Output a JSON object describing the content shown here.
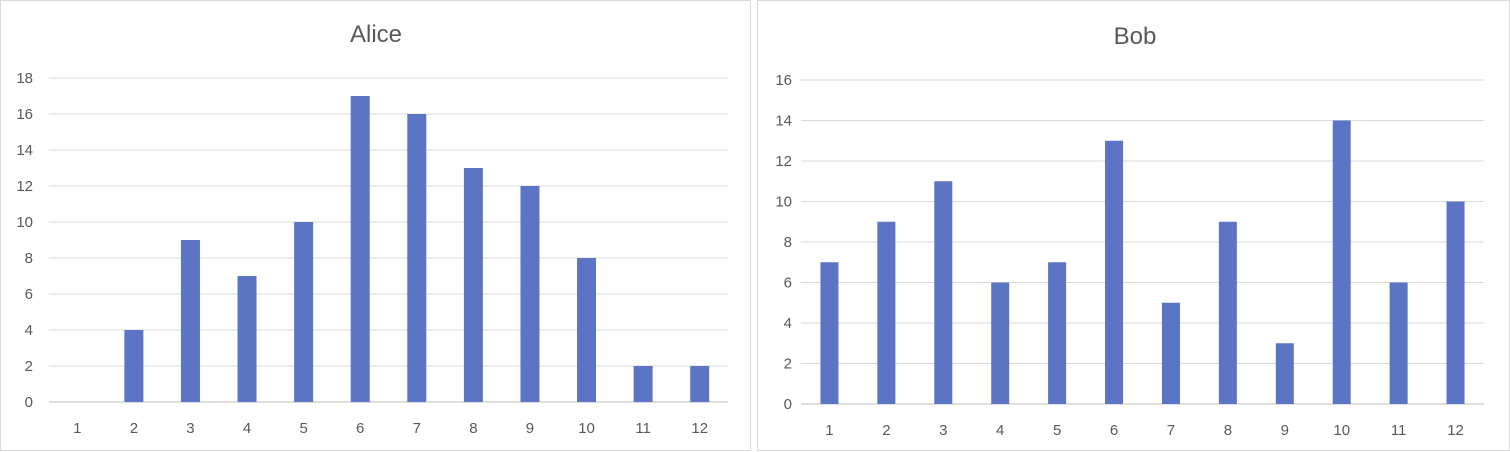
{
  "chart_data": [
    {
      "type": "bar",
      "title": "Alice",
      "categories": [
        "1",
        "2",
        "3",
        "4",
        "5",
        "6",
        "7",
        "8",
        "9",
        "10",
        "11",
        "12"
      ],
      "values": [
        0,
        4,
        9,
        7,
        10,
        17,
        16,
        13,
        12,
        8,
        2,
        2
      ],
      "xlabel": "",
      "ylabel": "",
      "ylim": [
        0,
        18
      ],
      "yticks": [
        0,
        2,
        4,
        6,
        8,
        10,
        12,
        14,
        16,
        18
      ],
      "grid": true,
      "bar_color": "#5b74c4"
    },
    {
      "type": "bar",
      "title": "Bob",
      "categories": [
        "1",
        "2",
        "3",
        "4",
        "5",
        "6",
        "7",
        "8",
        "9",
        "10",
        "11",
        "12"
      ],
      "values": [
        7,
        9,
        11,
        6,
        7,
        13,
        5,
        9,
        3,
        14,
        6,
        10
      ],
      "xlabel": "",
      "ylabel": "",
      "ylim": [
        0,
        16
      ],
      "yticks": [
        0,
        2,
        4,
        6,
        8,
        10,
        12,
        14,
        16
      ],
      "grid": true,
      "bar_color": "#5b74c4"
    }
  ]
}
